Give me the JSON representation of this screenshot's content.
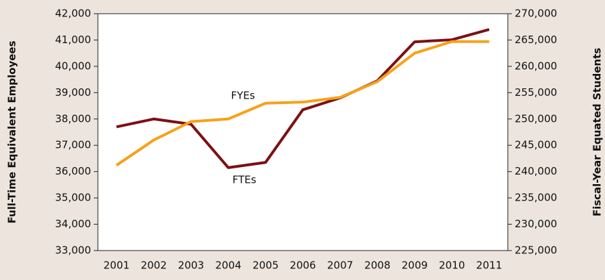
{
  "chart_data": {
    "type": "line",
    "categories": [
      "2001",
      "2002",
      "2003",
      "2004",
      "2005",
      "2006",
      "2007",
      "2008",
      "2009",
      "2010",
      "2011"
    ],
    "y_label": "Full-Time Equivalent Employees",
    "y2_label": "Fiscal-Year Equated Students",
    "series": [
      {
        "name": "FTEs",
        "color": "#7b1113",
        "values": [
          37700,
          38000,
          37800,
          36150,
          36350,
          38350,
          38800,
          39450,
          40930,
          41010,
          41400
        ]
      },
      {
        "name": "FYEs",
        "color": "#f7a11a",
        "axis": "y2",
        "values": [
          241200,
          246000,
          249500,
          250000,
          253000,
          253200,
          254100,
          257100,
          262500,
          264700,
          264700
        ]
      }
    ],
    "ylim": [
      33000,
      42000
    ],
    "yticks": [
      {
        "value": 33000,
        "label": "33,000"
      },
      {
        "value": 34000,
        "label": "34,000"
      },
      {
        "value": 35000,
        "label": "35,000"
      },
      {
        "value": 36000,
        "label": "36,000"
      },
      {
        "value": 37000,
        "label": "37,000"
      },
      {
        "value": 38000,
        "label": "38,000"
      },
      {
        "value": 39000,
        "label": "39,000"
      },
      {
        "value": 40000,
        "label": "40,000"
      },
      {
        "value": 41000,
        "label": "41,000"
      },
      {
        "value": 42000,
        "label": "42,000"
      }
    ],
    "y2lim": [
      225000,
      270000
    ],
    "y2ticks": [
      {
        "value": 225000,
        "label": "225,000"
      },
      {
        "value": 230000,
        "label": "230,000"
      },
      {
        "value": 235000,
        "label": "235,000"
      },
      {
        "value": 240000,
        "label": "240,000"
      },
      {
        "value": 245000,
        "label": "245,000"
      },
      {
        "value": 250000,
        "label": "250,000"
      },
      {
        "value": 255000,
        "label": "255,000"
      },
      {
        "value": 260000,
        "label": "260,000"
      },
      {
        "value": 265000,
        "label": "265,000"
      },
      {
        "value": 270000,
        "label": "270,000"
      }
    ],
    "grid": false
  }
}
